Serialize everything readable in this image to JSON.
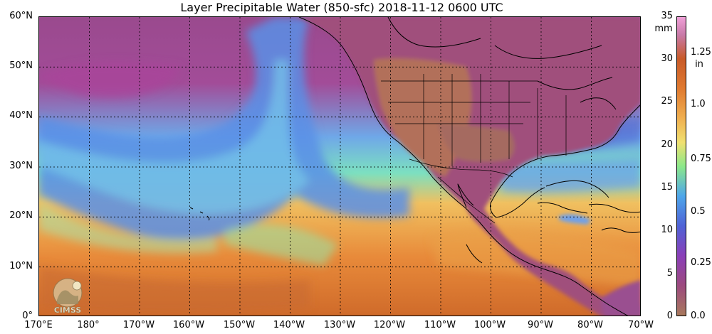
{
  "title": "Layer Precipitable Water (850-sfc)  2018-11-12 0600 UTC",
  "lat_labels": [
    "60°N",
    "50°N",
    "40°N",
    "30°N",
    "20°N",
    "10°N",
    "0°"
  ],
  "lon_labels": [
    "170°E",
    "180°",
    "170°W",
    "160°W",
    "150°W",
    "140°W",
    "130°W",
    "120°W",
    "110°W",
    "100°W",
    "90°W",
    "80°W",
    "70°W"
  ],
  "colorbar": {
    "mm_unit": "mm",
    "mm_ticks": [
      "35",
      "30",
      "25",
      "20",
      "15",
      "10",
      "5",
      "0"
    ],
    "in_unit": "in",
    "in_ticks": [
      "1.25",
      "1.0",
      "0.75",
      "0.5",
      "0.25",
      "0.0"
    ],
    "range_mm": [
      0,
      35
    ]
  },
  "logo_text": "CIMSS"
}
